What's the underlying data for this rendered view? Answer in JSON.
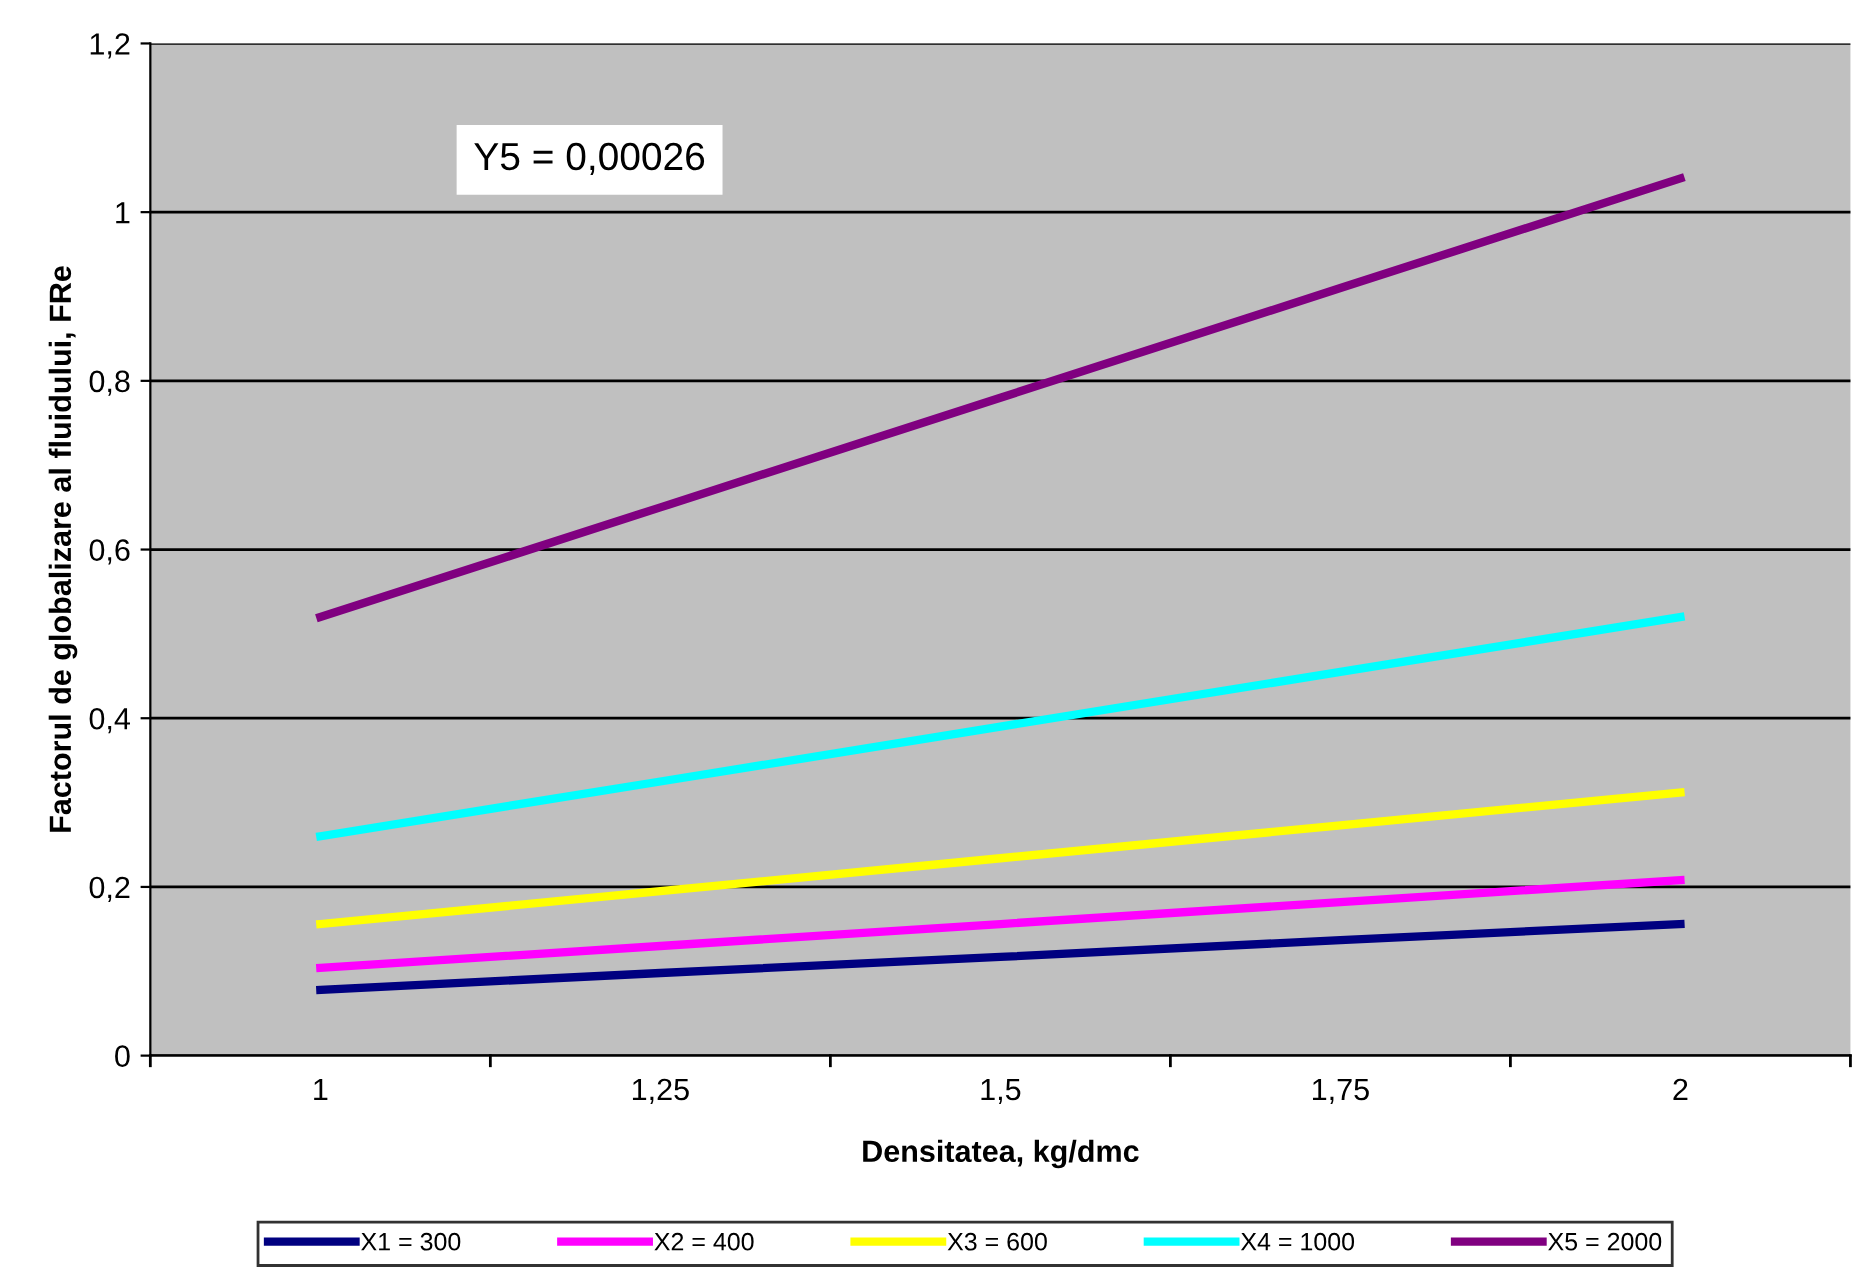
{
  "chart_data": {
    "type": "line",
    "xlabel": "Densitatea, kg/dmc",
    "ylabel": "Factorul de globalizare al fluidului, FRe",
    "categories": [
      "1",
      "1,25",
      "1,5",
      "1,75",
      "2"
    ],
    "series": [
      {
        "name": "X1 = 300",
        "color": "#000080",
        "values": [
          0.078,
          0.098,
          0.117,
          0.137,
          0.156
        ]
      },
      {
        "name": "X2 = 400",
        "color": "#ff00ff",
        "values": [
          0.104,
          0.13,
          0.156,
          0.182,
          0.208
        ]
      },
      {
        "name": "X3 = 600",
        "color": "#ffff00",
        "values": [
          0.156,
          0.195,
          0.234,
          0.273,
          0.312
        ]
      },
      {
        "name": "X4 = 1000",
        "color": "#00ffff",
        "values": [
          0.26,
          0.325,
          0.39,
          0.455,
          0.52
        ]
      },
      {
        "name": "X5 = 2000",
        "color": "#800080",
        "values": [
          0.52,
          0.65,
          0.78,
          0.91,
          1.04
        ]
      }
    ],
    "ylim": [
      0,
      1.2
    ],
    "yticks": [
      0,
      {
        "value": 0.2,
        "label": "0,2"
      },
      {
        "value": 0.4,
        "label": "0,4"
      },
      {
        "value": 0.6,
        "label": "0,6"
      },
      {
        "value": 0.8,
        "label": "0,8"
      },
      1,
      {
        "value": 1.2,
        "label": "1,2"
      }
    ],
    "grid": "y",
    "legend": "bottom",
    "marker": "none",
    "line_style": "solid",
    "annotations": [
      "Y5 = 0,00026"
    ]
  }
}
